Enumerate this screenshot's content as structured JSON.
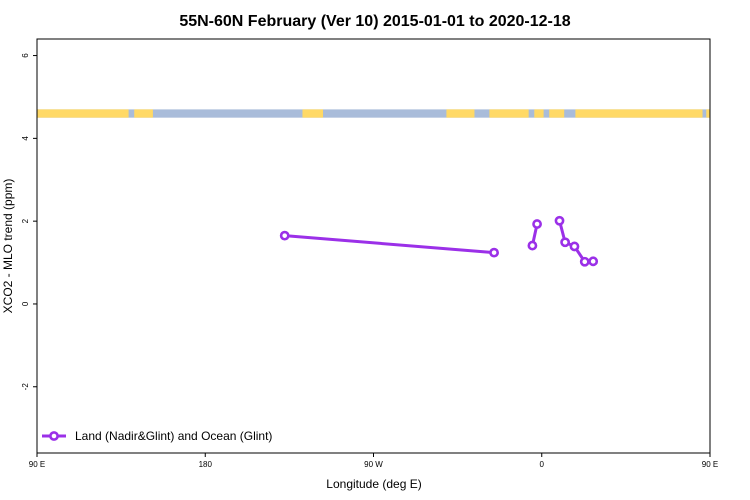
{
  "chart_data": {
    "type": "line",
    "title": "55N-60N February (Ver 10)   2015-01-01 to 2020-12-18",
    "xlabel": "Longitude (deg E)",
    "ylabel": "XCO2 - MLO trend (ppm)",
    "xlim": [
      90,
      450
    ],
    "ylim": [
      -3.6,
      6.4
    ],
    "x_ticks": [
      {
        "value": 90,
        "label": "90 E"
      },
      {
        "value": 180,
        "label": "180"
      },
      {
        "value": 270,
        "label": "90 W"
      },
      {
        "value": 360,
        "label": "0"
      },
      {
        "value": 450,
        "label": "90 E"
      },
      {
        "value": 540,
        "label": "180"
      }
    ],
    "y_ticks": [
      {
        "value": -2,
        "label": "-2"
      },
      {
        "value": 0,
        "label": "0"
      },
      {
        "value": 2,
        "label": "2"
      },
      {
        "value": 4,
        "label": "4"
      },
      {
        "value": 6,
        "label": "6"
      }
    ],
    "legend_position": "bottom-left",
    "map_strip": {
      "y_range": [
        4.5,
        4.7
      ],
      "land_color": "#FFD966",
      "ocean_color": "#A9BCDA"
    },
    "series": [
      {
        "name": "Land (Nadir&Glint) and Ocean (Glint)",
        "color": "#9B30E8",
        "points": [
          {
            "x": 222.5,
            "y": 1.65
          },
          {
            "x": 334.5,
            "y": 1.24
          },
          {
            "x": 355.0,
            "y": 1.41,
            "connect": false
          },
          {
            "x": 357.5,
            "y": 1.93
          },
          {
            "x": 369.5,
            "y": 2.01,
            "connect": false
          },
          {
            "x": 372.5,
            "y": 1.49
          },
          {
            "x": 377.5,
            "y": 1.39
          },
          {
            "x": 383.0,
            "y": 1.02
          },
          {
            "x": 387.5,
            "y": 1.03
          }
        ]
      }
    ]
  }
}
